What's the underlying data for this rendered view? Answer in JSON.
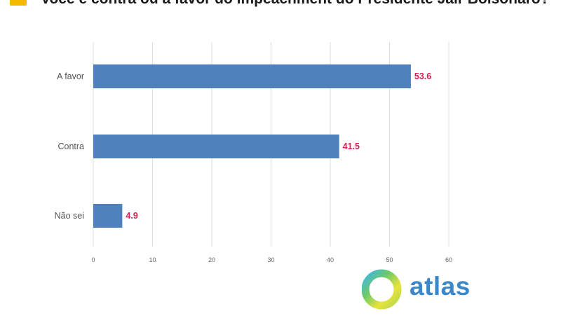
{
  "header": {
    "title": "Você é contra ou a favor do impeachment do Presidente Jair Bolsonaro?"
  },
  "logo": {
    "text": "atlas",
    "text_color": "#3a88c9"
  },
  "colors": {
    "bar": "#4f81bd",
    "value_label": "#d6204f",
    "grid": "#dddddd",
    "accent": "#f5b800"
  },
  "chart_data": {
    "type": "bar",
    "orientation": "horizontal",
    "title": "Você é contra ou a favor do impeachment do Presidente Jair Bolsonaro?",
    "categories": [
      "A favor",
      "Contra",
      "Não sei"
    ],
    "values": [
      53.6,
      41.5,
      4.9
    ],
    "value_labels": [
      "53.6",
      "41.5",
      "4.9"
    ],
    "xlim": [
      0,
      60
    ],
    "xticks": [
      0,
      10,
      20,
      30,
      40,
      50,
      60
    ],
    "grid": "vertical",
    "xlabel": "",
    "ylabel": ""
  }
}
